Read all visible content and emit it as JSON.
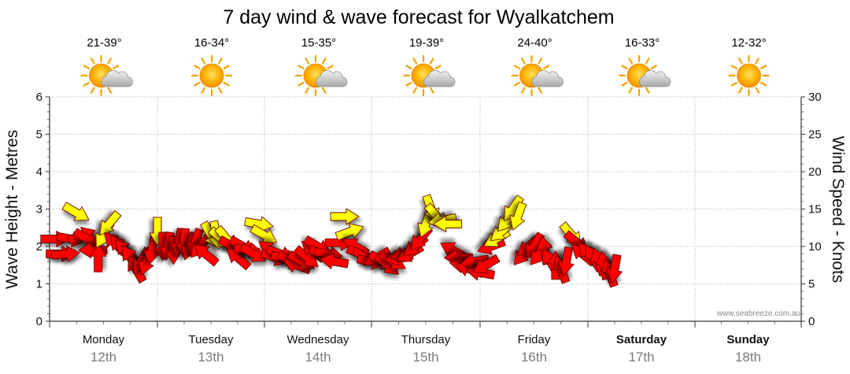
{
  "chart_data": {
    "type": "scatter",
    "title": "7 day wind & wave forecast for Wyalkatchem",
    "ylabel_left": "Wave Height - Metres",
    "ylabel_right": "Wind Speed - Knots",
    "y_left_ticks": [
      "0",
      "1",
      "2",
      "3",
      "4",
      "5",
      "6"
    ],
    "y_right_ticks": [
      "0",
      "5",
      "10",
      "15",
      "20",
      "25",
      "30"
    ],
    "y_left_range": [
      0,
      6
    ],
    "y_right_range": [
      0,
      30
    ],
    "grid": true,
    "days": [
      {
        "name": "Monday",
        "date": "12th",
        "temp": "21-39°",
        "icon": "sun-cloud-icon",
        "bold": false
      },
      {
        "name": "Tuesday",
        "date": "13th",
        "temp": "16-34°",
        "icon": "sun-icon",
        "bold": false
      },
      {
        "name": "Wednesday",
        "date": "14th",
        "temp": "15-35°",
        "icon": "sun-cloud-icon",
        "bold": false
      },
      {
        "name": "Thursday",
        "date": "15th",
        "temp": "19-39°",
        "icon": "sun-cloud-icon",
        "bold": false
      },
      {
        "name": "Friday",
        "date": "16th",
        "temp": "24-40°",
        "icon": "sun-cloud-icon",
        "bold": false
      },
      {
        "name": "Saturday",
        "date": "17th",
        "temp": "16-33°",
        "icon": "sun-cloud-icon",
        "bold": true
      },
      {
        "name": "Sunday",
        "date": "18th",
        "temp": "12-32°",
        "icon": "sun-icon",
        "bold": true
      }
    ],
    "legend_colors": {
      "strong_wind": "#ff0000",
      "moderate_wind": "#ffff00"
    },
    "wind_series": [
      {
        "t": 0.05,
        "speed": 11.0,
        "dir": 270,
        "c": "red"
      },
      {
        "t": 0.1,
        "speed": 9.0,
        "dir": 270,
        "c": "red"
      },
      {
        "t": 0.15,
        "speed": 9.0,
        "dir": 265,
        "c": "red"
      },
      {
        "t": 0.2,
        "speed": 11.0,
        "dir": 280,
        "c": "red"
      },
      {
        "t": 0.25,
        "speed": 14.5,
        "dir": 300,
        "c": "yellow"
      },
      {
        "t": 0.3,
        "speed": 11.5,
        "dir": 250,
        "c": "red"
      },
      {
        "t": 0.35,
        "speed": 11.0,
        "dir": 300,
        "c": "red"
      },
      {
        "t": 0.4,
        "speed": 9.5,
        "dir": 90,
        "c": "red"
      },
      {
        "t": 0.45,
        "speed": 8.5,
        "dir": 180,
        "c": "red"
      },
      {
        "t": 0.5,
        "speed": 11.5,
        "dir": 30,
        "c": "yellow"
      },
      {
        "t": 0.55,
        "speed": 13.0,
        "dir": 40,
        "c": "yellow"
      },
      {
        "t": 0.6,
        "speed": 10.5,
        "dir": 135,
        "c": "red"
      },
      {
        "t": 0.65,
        "speed": 10.0,
        "dir": 140,
        "c": "red"
      },
      {
        "t": 0.7,
        "speed": 9.5,
        "dir": 135,
        "c": "red"
      },
      {
        "t": 0.75,
        "speed": 8.5,
        "dir": 145,
        "c": "red"
      },
      {
        "t": 0.8,
        "speed": 7.0,
        "dir": 150,
        "c": "red"
      },
      {
        "t": 0.85,
        "speed": 8.0,
        "dir": 30,
        "c": "red"
      },
      {
        "t": 0.9,
        "speed": 8.0,
        "dir": 20,
        "c": "red"
      },
      {
        "t": 0.95,
        "speed": 9.5,
        "dir": 10,
        "c": "red"
      },
      {
        "t": 1.0,
        "speed": 12.0,
        "dir": 0,
        "c": "yellow"
      },
      {
        "t": 1.05,
        "speed": 10.0,
        "dir": 0,
        "c": "red"
      },
      {
        "t": 1.1,
        "speed": 10.0,
        "dir": 10,
        "c": "red"
      },
      {
        "t": 1.15,
        "speed": 9.5,
        "dir": 0,
        "c": "red"
      },
      {
        "t": 1.2,
        "speed": 10.5,
        "dir": 10,
        "c": "red"
      },
      {
        "t": 1.25,
        "speed": 10.5,
        "dir": 5,
        "c": "red"
      },
      {
        "t": 1.3,
        "speed": 10.0,
        "dir": 20,
        "c": "red"
      },
      {
        "t": 1.35,
        "speed": 10.5,
        "dir": 20,
        "c": "red"
      },
      {
        "t": 1.4,
        "speed": 10.0,
        "dir": 40,
        "c": "red"
      },
      {
        "t": 1.45,
        "speed": 9.0,
        "dir": 130,
        "c": "red"
      },
      {
        "t": 1.5,
        "speed": 11.5,
        "dir": 330,
        "c": "yellow"
      },
      {
        "t": 1.55,
        "speed": 11.5,
        "dir": 350,
        "c": "yellow"
      },
      {
        "t": 1.6,
        "speed": 11.0,
        "dir": 310,
        "c": "yellow"
      },
      {
        "t": 1.65,
        "speed": 11.0,
        "dir": 320,
        "c": "yellow"
      },
      {
        "t": 1.7,
        "speed": 10.0,
        "dir": 300,
        "c": "red"
      },
      {
        "t": 1.75,
        "speed": 8.5,
        "dir": 130,
        "c": "red"
      },
      {
        "t": 1.8,
        "speed": 10.0,
        "dir": 300,
        "c": "red"
      },
      {
        "t": 1.85,
        "speed": 9.5,
        "dir": 280,
        "c": "red"
      },
      {
        "t": 1.9,
        "speed": 9.0,
        "dir": 300,
        "c": "red"
      },
      {
        "t": 1.95,
        "speed": 13.0,
        "dir": 280,
        "c": "yellow"
      },
      {
        "t": 2.0,
        "speed": 11.5,
        "dir": 300,
        "c": "yellow"
      },
      {
        "t": 2.05,
        "speed": 9.5,
        "dir": 130,
        "c": "red"
      },
      {
        "t": 2.1,
        "speed": 8.5,
        "dir": 290,
        "c": "red"
      },
      {
        "t": 2.15,
        "speed": 9.0,
        "dir": 290,
        "c": "red"
      },
      {
        "t": 2.2,
        "speed": 8.5,
        "dir": 280,
        "c": "red"
      },
      {
        "t": 2.25,
        "speed": 8.0,
        "dir": 300,
        "c": "red"
      },
      {
        "t": 2.3,
        "speed": 7.5,
        "dir": 110,
        "c": "red"
      },
      {
        "t": 2.35,
        "speed": 8.0,
        "dir": 300,
        "c": "red"
      },
      {
        "t": 2.4,
        "speed": 8.5,
        "dir": 310,
        "c": "red"
      },
      {
        "t": 2.45,
        "speed": 9.5,
        "dir": 130,
        "c": "red"
      },
      {
        "t": 2.5,
        "speed": 10.0,
        "dir": 300,
        "c": "red"
      },
      {
        "t": 2.55,
        "speed": 9.0,
        "dir": 290,
        "c": "red"
      },
      {
        "t": 2.6,
        "speed": 9.0,
        "dir": 280,
        "c": "red"
      },
      {
        "t": 2.65,
        "speed": 8.0,
        "dir": 100,
        "c": "red"
      },
      {
        "t": 2.7,
        "speed": 10.5,
        "dir": 270,
        "c": "red"
      },
      {
        "t": 2.75,
        "speed": 14.0,
        "dir": 270,
        "c": "yellow"
      },
      {
        "t": 2.8,
        "speed": 12.0,
        "dir": 250,
        "c": "yellow"
      },
      {
        "t": 2.85,
        "speed": 10.0,
        "dir": 120,
        "c": "red"
      },
      {
        "t": 2.9,
        "speed": 9.0,
        "dir": 290,
        "c": "red"
      },
      {
        "t": 2.95,
        "speed": 8.5,
        "dir": 300,
        "c": "red"
      },
      {
        "t": 3.0,
        "speed": 8.0,
        "dir": 280,
        "c": "red"
      },
      {
        "t": 3.05,
        "speed": 8.5,
        "dir": 60,
        "c": "red"
      },
      {
        "t": 3.1,
        "speed": 8.0,
        "dir": 300,
        "c": "red"
      },
      {
        "t": 3.15,
        "speed": 7.5,
        "dir": 310,
        "c": "red"
      },
      {
        "t": 3.2,
        "speed": 8.0,
        "dir": 300,
        "c": "red"
      },
      {
        "t": 3.25,
        "speed": 8.5,
        "dir": 80,
        "c": "red"
      },
      {
        "t": 3.3,
        "speed": 9.0,
        "dir": 70,
        "c": "red"
      },
      {
        "t": 3.35,
        "speed": 9.0,
        "dir": 60,
        "c": "red"
      },
      {
        "t": 3.4,
        "speed": 10.0,
        "dir": 50,
        "c": "red"
      },
      {
        "t": 3.45,
        "speed": 11.0,
        "dir": 40,
        "c": "red"
      },
      {
        "t": 3.5,
        "speed": 13.0,
        "dir": 20,
        "c": "yellow"
      },
      {
        "t": 3.55,
        "speed": 15.0,
        "dir": 340,
        "c": "yellow"
      },
      {
        "t": 3.6,
        "speed": 14.0,
        "dir": 320,
        "c": "yellow"
      },
      {
        "t": 3.65,
        "speed": 13.5,
        "dir": 80,
        "c": "yellow"
      },
      {
        "t": 3.7,
        "speed": 13.0,
        "dir": 90,
        "c": "yellow"
      },
      {
        "t": 3.75,
        "speed": 9.5,
        "dir": 120,
        "c": "red"
      },
      {
        "t": 3.8,
        "speed": 8.5,
        "dir": 90,
        "c": "red"
      },
      {
        "t": 3.85,
        "speed": 7.5,
        "dir": 100,
        "c": "red"
      },
      {
        "t": 3.9,
        "speed": 7.0,
        "dir": 110,
        "c": "red"
      },
      {
        "t": 3.95,
        "speed": 8.0,
        "dir": 80,
        "c": "red"
      },
      {
        "t": 4.0,
        "speed": 6.5,
        "dir": 100,
        "c": "red"
      },
      {
        "t": 4.05,
        "speed": 7.5,
        "dir": 60,
        "c": "red"
      },
      {
        "t": 4.1,
        "speed": 10.0,
        "dir": 70,
        "c": "red"
      },
      {
        "t": 4.15,
        "speed": 11.0,
        "dir": 60,
        "c": "yellow"
      },
      {
        "t": 4.2,
        "speed": 12.0,
        "dir": 50,
        "c": "yellow"
      },
      {
        "t": 4.25,
        "speed": 13.5,
        "dir": 40,
        "c": "yellow"
      },
      {
        "t": 4.3,
        "speed": 15.0,
        "dir": 35,
        "c": "yellow"
      },
      {
        "t": 4.35,
        "speed": 14.0,
        "dir": 20,
        "c": "yellow"
      },
      {
        "t": 4.4,
        "speed": 9.0,
        "dir": 40,
        "c": "red"
      },
      {
        "t": 4.45,
        "speed": 10.0,
        "dir": 50,
        "c": "red"
      },
      {
        "t": 4.5,
        "speed": 10.0,
        "dir": 30,
        "c": "red"
      },
      {
        "t": 4.55,
        "speed": 9.0,
        "dir": 40,
        "c": "red"
      },
      {
        "t": 4.6,
        "speed": 9.5,
        "dir": 170,
        "c": "red"
      },
      {
        "t": 4.65,
        "speed": 8.0,
        "dir": 150,
        "c": "red"
      },
      {
        "t": 4.7,
        "speed": 7.5,
        "dir": 180,
        "c": "red"
      },
      {
        "t": 4.75,
        "speed": 7.0,
        "dir": 160,
        "c": "red"
      },
      {
        "t": 4.8,
        "speed": 8.0,
        "dir": 10,
        "c": "red"
      },
      {
        "t": 4.85,
        "speed": 11.5,
        "dir": 320,
        "c": "yellow"
      },
      {
        "t": 4.9,
        "speed": 10.5,
        "dir": 310,
        "c": "red"
      },
      {
        "t": 4.95,
        "speed": 9.0,
        "dir": 130,
        "c": "red"
      },
      {
        "t": 5.0,
        "speed": 9.0,
        "dir": 140,
        "c": "red"
      },
      {
        "t": 5.05,
        "speed": 8.5,
        "dir": 150,
        "c": "red"
      },
      {
        "t": 5.1,
        "speed": 8.0,
        "dir": 160,
        "c": "red"
      },
      {
        "t": 5.15,
        "speed": 7.5,
        "dir": 170,
        "c": "red"
      },
      {
        "t": 5.2,
        "speed": 6.5,
        "dir": 160,
        "c": "red"
      },
      {
        "t": 5.25,
        "speed": 7.0,
        "dir": 10,
        "c": "red"
      }
    ]
  },
  "credit": "www.seabreeze.com.au"
}
